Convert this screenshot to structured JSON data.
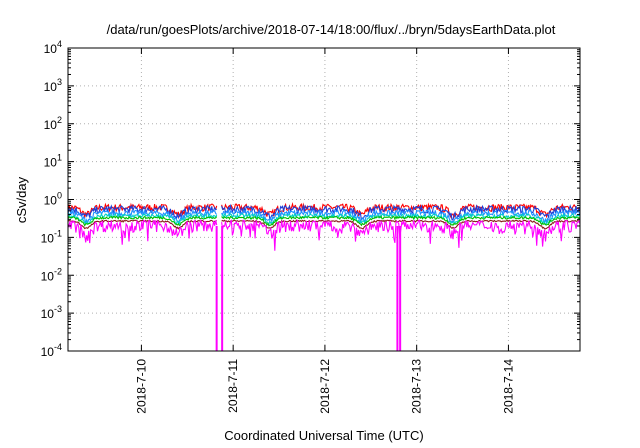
{
  "chart_data": {
    "type": "line",
    "title": "/data/run/goesPlots/archive/2018-07-14/18:00/flux/../bryn/5daysEarthData.plot",
    "xlabel": "Coordinated Universal Time (UTC)",
    "ylabel": "cSv/day",
    "yscale": "log",
    "ylim": [
      0.0001,
      10000
    ],
    "xlim": [
      9.2,
      14.78
    ],
    "grid": true,
    "y_ticks": [
      {
        "value": 0.0001,
        "base": "10",
        "exp": "-4"
      },
      {
        "value": 0.001,
        "base": "10",
        "exp": "-3"
      },
      {
        "value": 0.01,
        "base": "10",
        "exp": "-2"
      },
      {
        "value": 0.1,
        "base": "10",
        "exp": "-1"
      },
      {
        "value": 1,
        "base": "10",
        "exp": "0"
      },
      {
        "value": 10,
        "base": "10",
        "exp": "1"
      },
      {
        "value": 100,
        "base": "10",
        "exp": "2"
      },
      {
        "value": 1000,
        "base": "10",
        "exp": "3"
      },
      {
        "value": 10000,
        "base": "10",
        "exp": "4"
      }
    ],
    "x_ticks": [
      {
        "value": 10,
        "label": "2018-7-10"
      },
      {
        "value": 11,
        "label": "2018-7-11"
      },
      {
        "value": 12,
        "label": "2018-7-12"
      },
      {
        "value": 13,
        "label": "2018-7-13"
      },
      {
        "value": 14,
        "label": "2018-7-14"
      }
    ],
    "series": [
      {
        "color": "#ff0000",
        "level": 0.62,
        "spread": 0.22
      },
      {
        "color": "#1f3fd6",
        "level": 0.56,
        "spread": 0.22
      },
      {
        "color": "#1e90ff",
        "level": 0.44,
        "spread": 0.18
      },
      {
        "color": "#00d0c8",
        "level": 0.37,
        "spread": 0.12
      },
      {
        "color": "#00c000",
        "level": 0.33,
        "spread": 0.08
      },
      {
        "color": "#8b1a1a",
        "level": 0.27,
        "spread": 0.05
      },
      {
        "color": "#ff00ff",
        "level": 0.21,
        "spread": 0.35
      }
    ],
    "dropouts": [
      {
        "x_start": 10.82,
        "x_end": 10.88,
        "series_color": "#ff00ff",
        "value": 0.0001
      },
      {
        "x_start": 12.79,
        "x_end": 12.82,
        "series_color": "#ff00ff",
        "value": 0.0001
      }
    ],
    "gap": {
      "x_start": 10.83,
      "x_end": 10.87
    }
  }
}
